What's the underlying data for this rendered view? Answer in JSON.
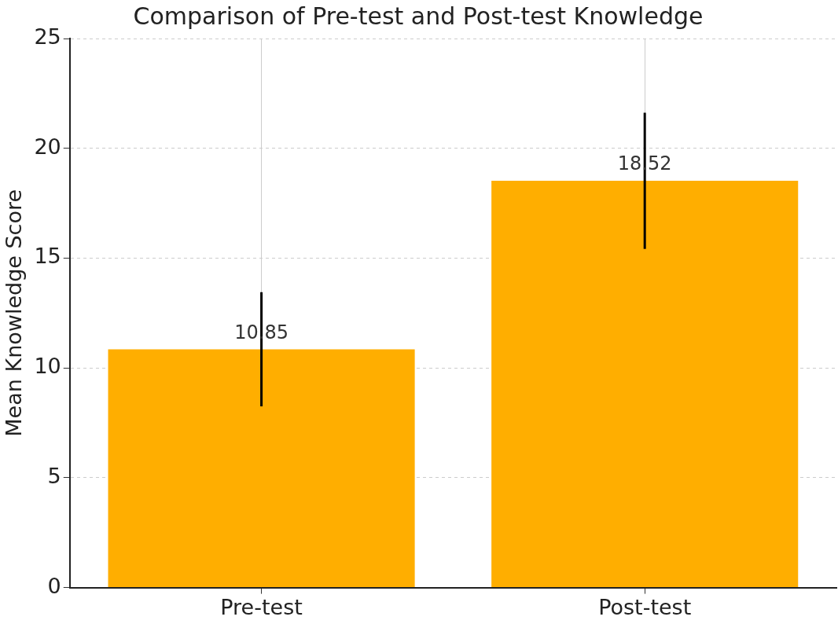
{
  "chart_data": {
    "type": "bar",
    "title": "Comparison of Pre-test and Post-test Knowledge",
    "ylabel": "Mean Knowledge Score",
    "categories": [
      "Pre-test",
      "Post-test"
    ],
    "values": [
      10.85,
      18.52
    ],
    "color": "#ffae00",
    "errors": [
      2.6,
      3.1
    ],
    "data_labels": true,
    "ylim": [
      0,
      25
    ],
    "yticks": [
      0,
      5,
      10,
      15,
      20,
      25
    ],
    "grid": true,
    "legend": false
  }
}
